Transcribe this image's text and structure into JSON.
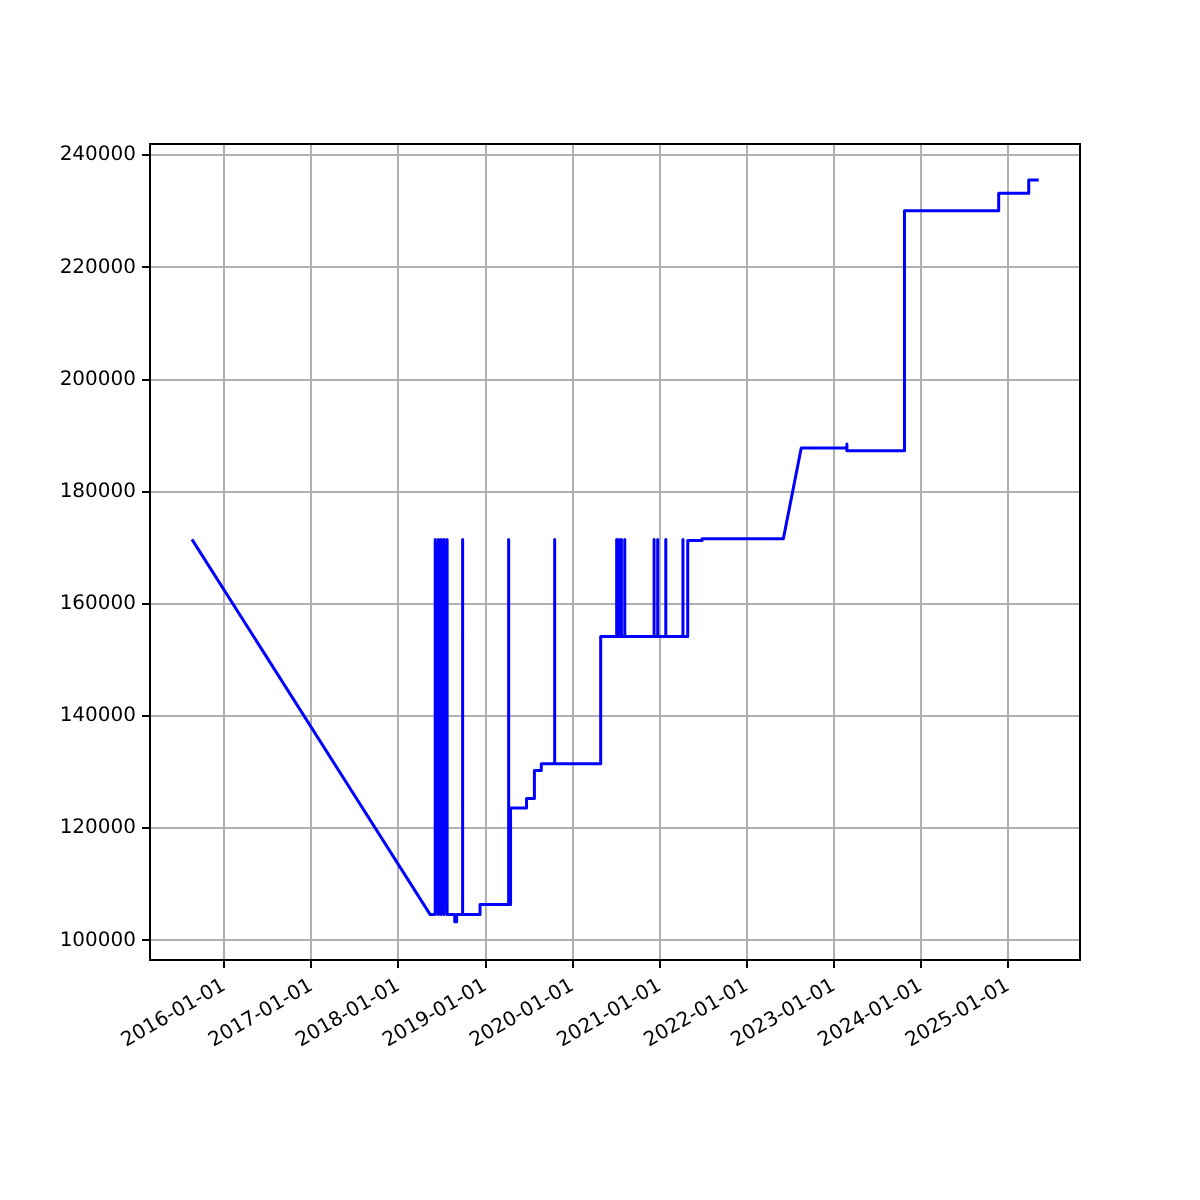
{
  "chart_data": {
    "type": "line",
    "color": "#0000ff",
    "marker": "none",
    "grid": true,
    "xlim": [
      "2015-02-24",
      "2025-10-29"
    ],
    "ylim": [
      96500,
      242000
    ],
    "xticks": [
      "2016-01-01",
      "2017-01-01",
      "2018-01-01",
      "2019-01-01",
      "2020-01-01",
      "2021-01-01",
      "2022-01-01",
      "2023-01-01",
      "2024-01-01",
      "2025-01-01"
    ],
    "yticks": [
      100000,
      120000,
      140000,
      160000,
      180000,
      200000,
      220000,
      240000
    ],
    "x": [
      "2015-08-19",
      "2018-05-14",
      "2018-06-04",
      "2018-06-04",
      "2018-06-04",
      "2018-06-17",
      "2018-06-17",
      "2018-06-17",
      "2018-06-29",
      "2018-06-29",
      "2018-06-29",
      "2018-07-11",
      "2018-07-11",
      "2018-07-11",
      "2018-07-24",
      "2018-07-24",
      "2018-07-24",
      "2018-08-25",
      "2018-08-25",
      "2018-09-02",
      "2018-09-02",
      "2018-09-27",
      "2018-09-27",
      "2018-09-27",
      "2018-12-09",
      "2018-12-09",
      "2019-04-08",
      "2019-04-08",
      "2019-04-08",
      "2019-04-16",
      "2019-04-16",
      "2019-06-22",
      "2019-06-22",
      "2019-07-25",
      "2019-07-25",
      "2019-08-23",
      "2019-08-23",
      "2019-10-18",
      "2019-10-18",
      "2019-10-18",
      "2020-04-28",
      "2020-04-28",
      "2020-07-04",
      "2020-07-04",
      "2020-07-04",
      "2020-07-14",
      "2020-07-14",
      "2020-07-14",
      "2020-07-24",
      "2020-07-24",
      "2020-07-24",
      "2020-08-07",
      "2020-08-07",
      "2020-08-07",
      "2020-12-08",
      "2020-12-08",
      "2020-12-08",
      "2020-12-23",
      "2020-12-23",
      "2020-12-23",
      "2021-01-26",
      "2021-01-26",
      "2021-01-26",
      "2021-04-08",
      "2021-04-08",
      "2021-04-08",
      "2021-04-28",
      "2021-04-28",
      "2021-06-27",
      "2021-06-27",
      "2022-06-03",
      "2022-08-17",
      "2023-02-23",
      "2023-02-23",
      "2023-02-26",
      "2023-10-24",
      "2023-10-24",
      "2024-11-22",
      "2024-11-22",
      "2025-03-28",
      "2025-03-28",
      "2025-05-09"
    ],
    "values": [
      171500,
      104600,
      104600,
      171500,
      104600,
      171500,
      104600,
      171500,
      104600,
      171500,
      104600,
      171500,
      104600,
      171500,
      104600,
      171500,
      104600,
      104600,
      103300,
      103300,
      104600,
      104600,
      171500,
      104600,
      104600,
      106400,
      106400,
      171500,
      106400,
      106400,
      123600,
      123600,
      125300,
      125300,
      130300,
      130300,
      131500,
      131500,
      171500,
      131500,
      131500,
      154200,
      154200,
      171500,
      154200,
      154200,
      171500,
      154200,
      154200,
      171500,
      154200,
      154200,
      171500,
      154200,
      154200,
      171500,
      154200,
      154200,
      171500,
      154200,
      154200,
      171500,
      154200,
      154200,
      171500,
      154200,
      154200,
      171300,
      171300,
      171600,
      171600,
      187800,
      187800,
      188500,
      187300,
      187300,
      230100,
      230100,
      233200,
      233200,
      235600,
      235600
    ]
  }
}
